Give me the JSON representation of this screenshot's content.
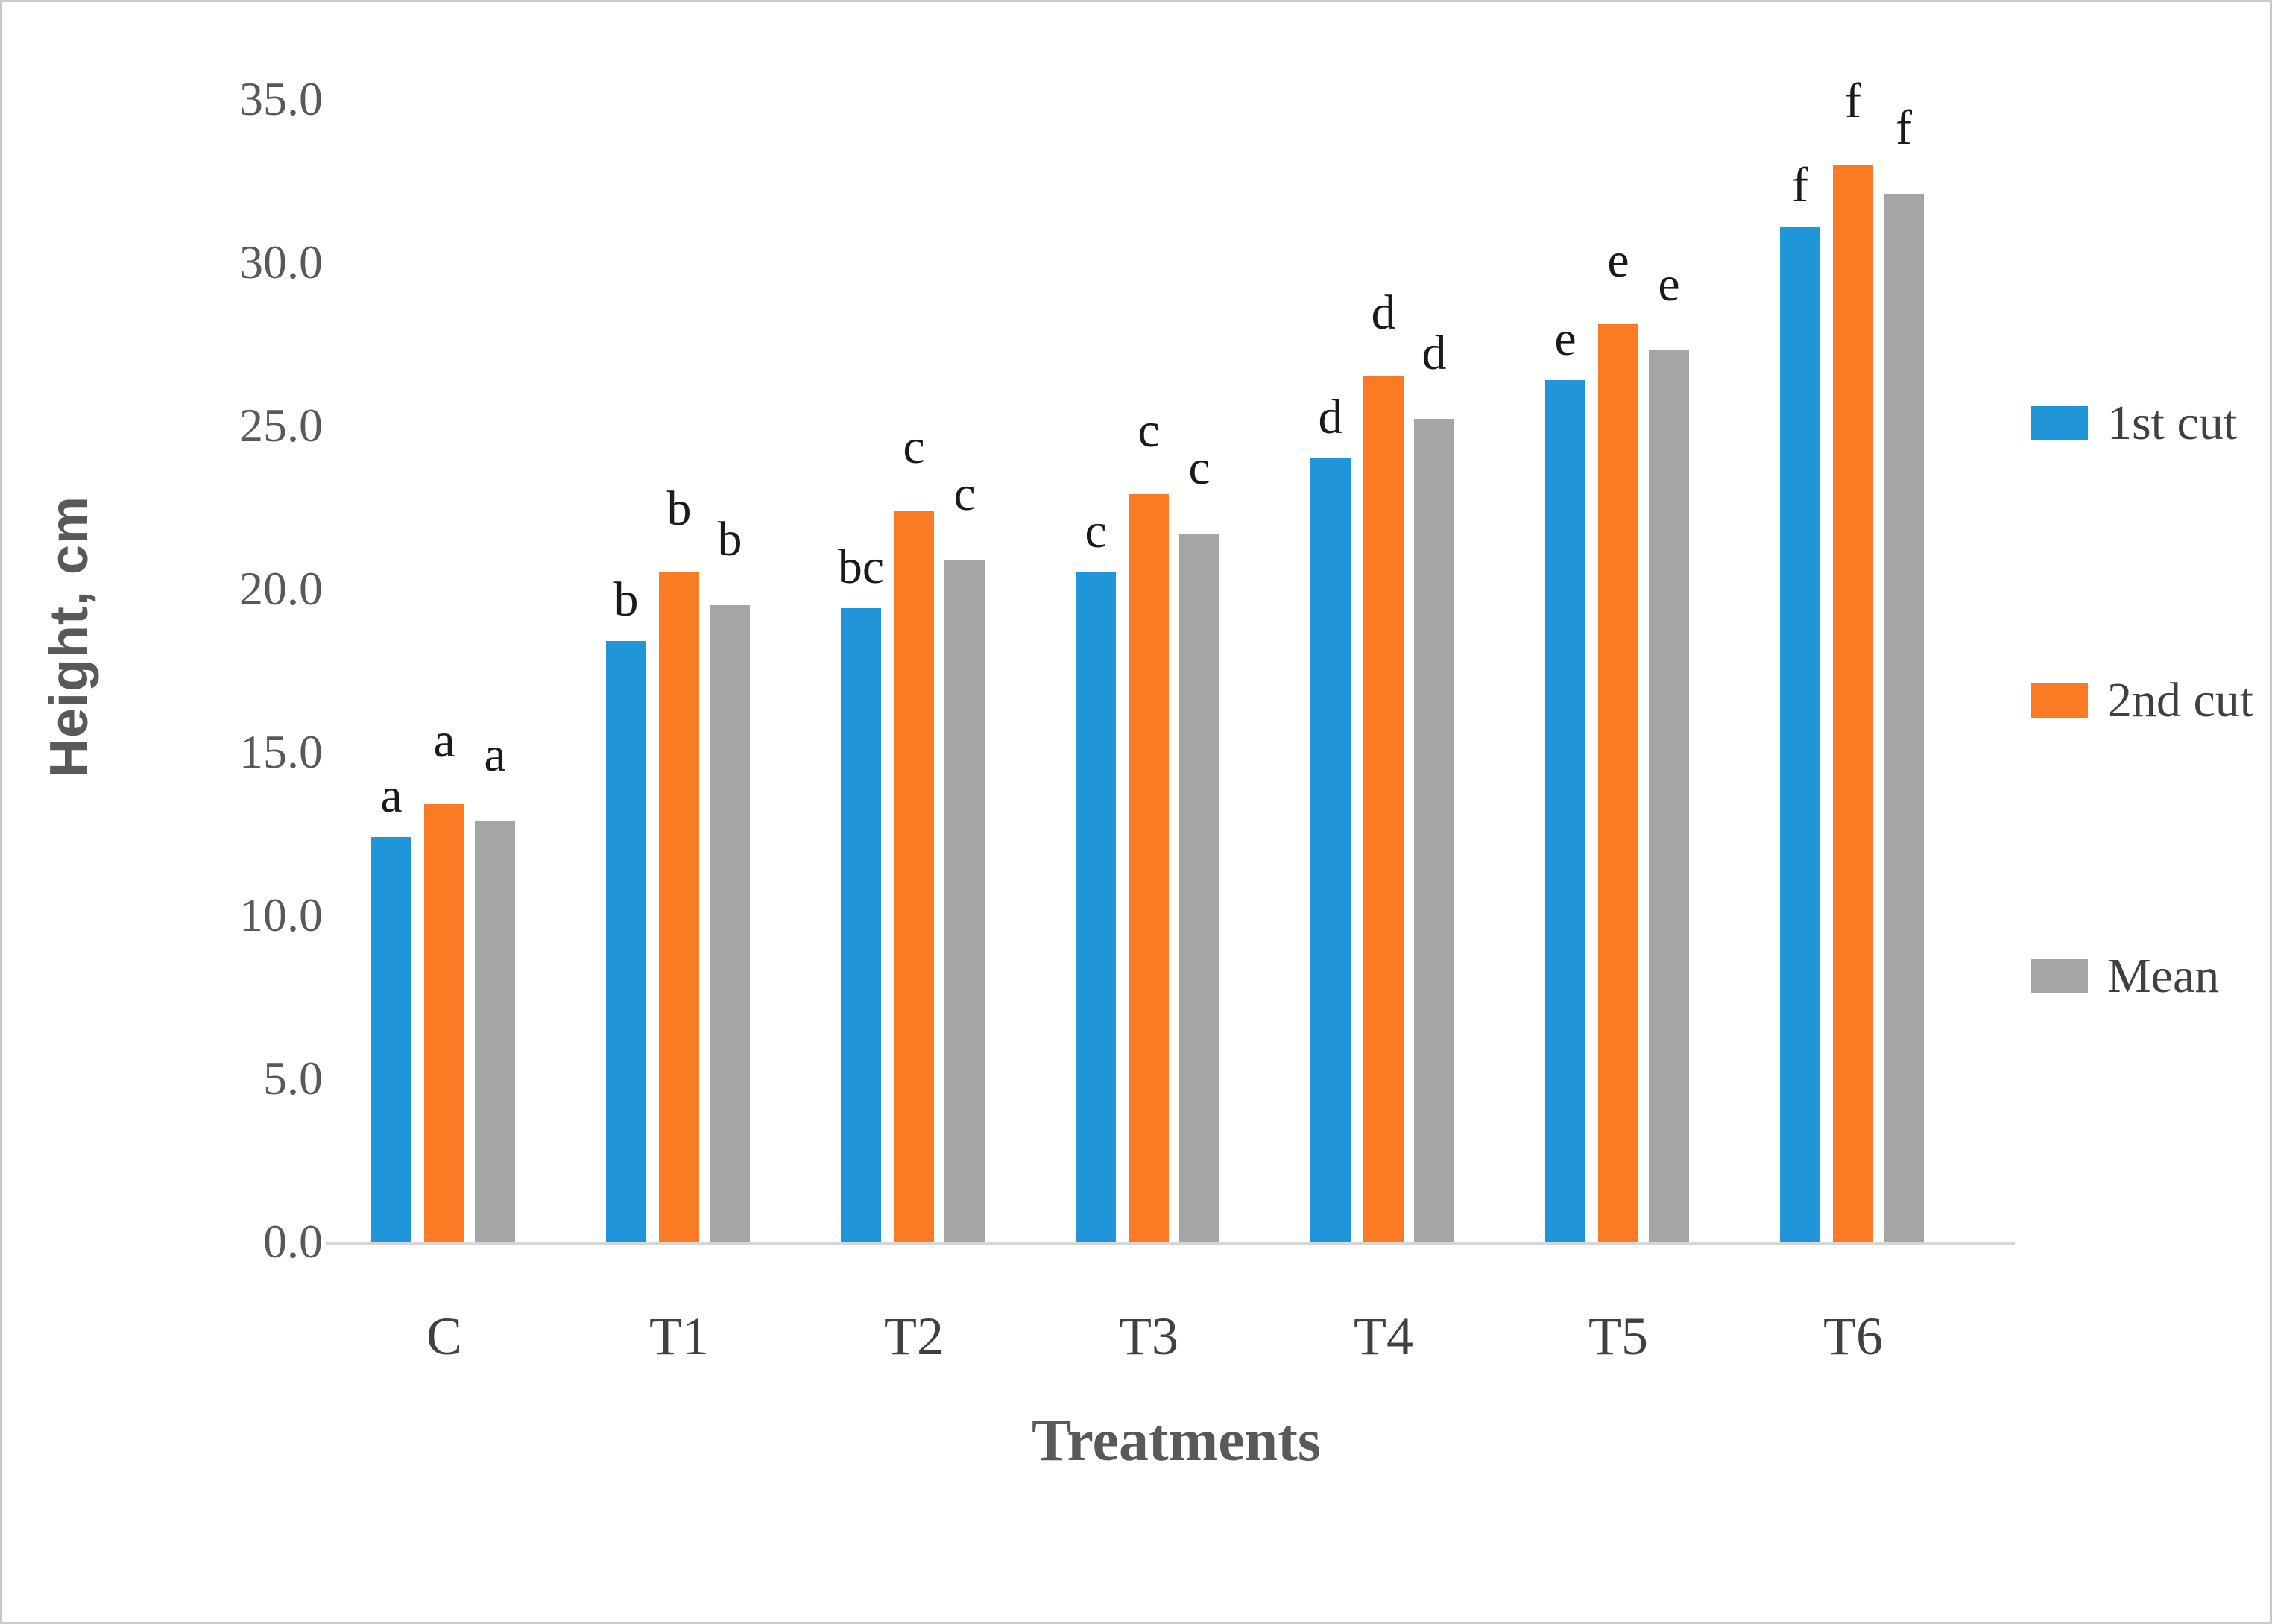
{
  "chart_data": {
    "type": "bar",
    "title": "",
    "xlabel": "Treatments",
    "ylabel": "Height, cm",
    "ylim": [
      0,
      35
    ],
    "ytick_step": 5,
    "ytick_format": "one-decimal",
    "grid": false,
    "legend_position": "right",
    "categories": [
      "C",
      "T1",
      "T2",
      "T3",
      "T4",
      "T5",
      "T6"
    ],
    "series": [
      {
        "name": "1st cut",
        "color": "#2096d8",
        "values": [
          12.4,
          18.4,
          19.4,
          20.5,
          24.0,
          26.4,
          31.1
        ],
        "letters": [
          "a",
          "b",
          "bc",
          "c",
          "d",
          "e",
          "f"
        ]
      },
      {
        "name": "2nd cut",
        "color": "#fb7b25",
        "values": [
          13.4,
          20.5,
          22.4,
          22.9,
          26.5,
          28.1,
          33.0
        ],
        "letters": [
          "a",
          "b",
          "c",
          "c",
          "d",
          "e",
          "f"
        ]
      },
      {
        "name": "Mean",
        "color": "#a5a5a5",
        "values": [
          12.9,
          19.5,
          20.9,
          21.7,
          25.2,
          27.3,
          32.1
        ],
        "letters": [
          "a",
          "b",
          "c",
          "c",
          "d",
          "e",
          "f"
        ]
      }
    ],
    "axis_line_color": "#d6d6d6",
    "tick_label_color": "#595959",
    "category_label_color": "#404040"
  }
}
